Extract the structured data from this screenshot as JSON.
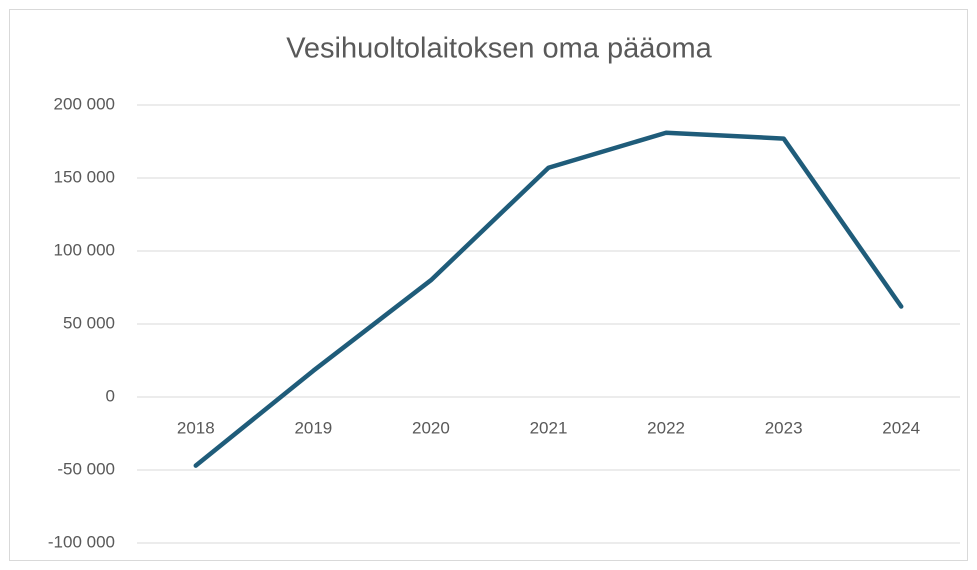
{
  "chart_data": {
    "type": "line",
    "title": "Vesihuoltolaitoksen oma pääoma",
    "categories": [
      "2018",
      "2019",
      "2020",
      "2021",
      "2022",
      "2023",
      "2024"
    ],
    "series": [
      {
        "name": "Vesihuoltolaitoksen oma pääoma",
        "color": "#1f5c7a",
        "values": [
          -47000,
          18000,
          80000,
          157000,
          181000,
          177000,
          62000
        ]
      }
    ],
    "ylim": [
      -100000,
      200000
    ],
    "yticks": [
      {
        "value": -100000,
        "label": "-100 000"
      },
      {
        "value": -50000,
        "label": "-50 000"
      },
      0,
      {
        "value": 50000,
        "label": "50 000"
      },
      {
        "value": 100000,
        "label": "100 000"
      },
      {
        "value": 150000,
        "label": "150 000"
      },
      {
        "value": 200000,
        "label": "200 000"
      }
    ],
    "grid": true,
    "legend": false
  }
}
